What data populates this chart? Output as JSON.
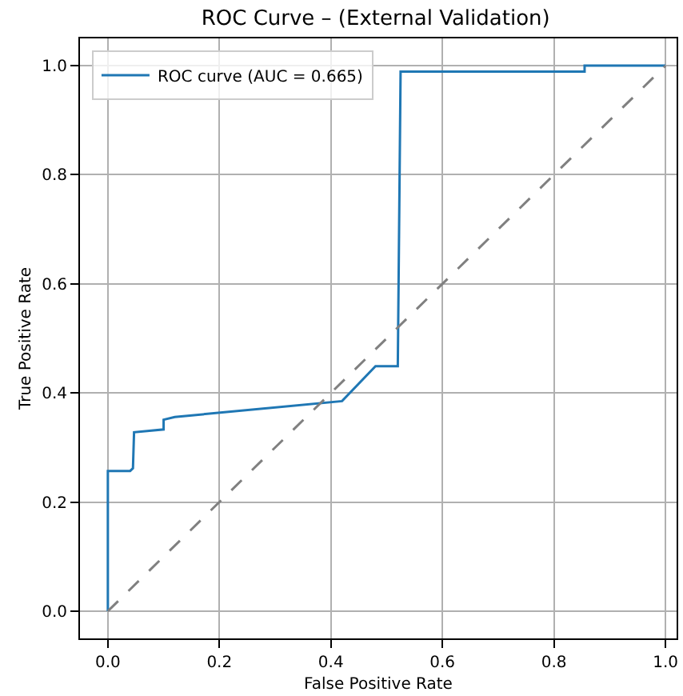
{
  "chart_data": {
    "type": "line",
    "title": "ROC Curve – (External Validation)",
    "xlabel": "False Positive Rate",
    "ylabel": "True Positive Rate",
    "series": [
      {
        "name": "ROC curve (AUC = 0.665)",
        "color": "#1f77b4",
        "line_style": "solid",
        "x": [
          0,
          0,
          0.04,
          0.045,
          0.047,
          0.1,
          0.1,
          0.12,
          0.42,
          0.48,
          0.52,
          0.525,
          0.855,
          0.855,
          1.0
        ],
        "values": [
          0,
          0.257,
          0.257,
          0.262,
          0.328,
          0.333,
          0.351,
          0.356,
          0.385,
          0.449,
          0.449,
          0.989,
          0.989,
          1.0,
          1.0
        ]
      },
      {
        "color": "#808080",
        "line_style": "dashed",
        "x": [
          0,
          1
        ],
        "values": [
          0,
          1
        ]
      }
    ],
    "xlim": [
      -0.05,
      1.02
    ],
    "ylim": [
      -0.05,
      1.05
    ],
    "xticks": [
      {
        "value": 0,
        "label": "0.0"
      },
      0.2,
      0.4,
      0.6,
      0.8,
      {
        "value": 1,
        "label": "1.0"
      }
    ],
    "yticks": [
      {
        "value": 0,
        "label": "0.0"
      },
      0.2,
      0.4,
      0.6,
      0.8,
      {
        "value": 1,
        "label": "1.0"
      }
    ],
    "grid": true,
    "legend": "top left",
    "marker": "none"
  }
}
